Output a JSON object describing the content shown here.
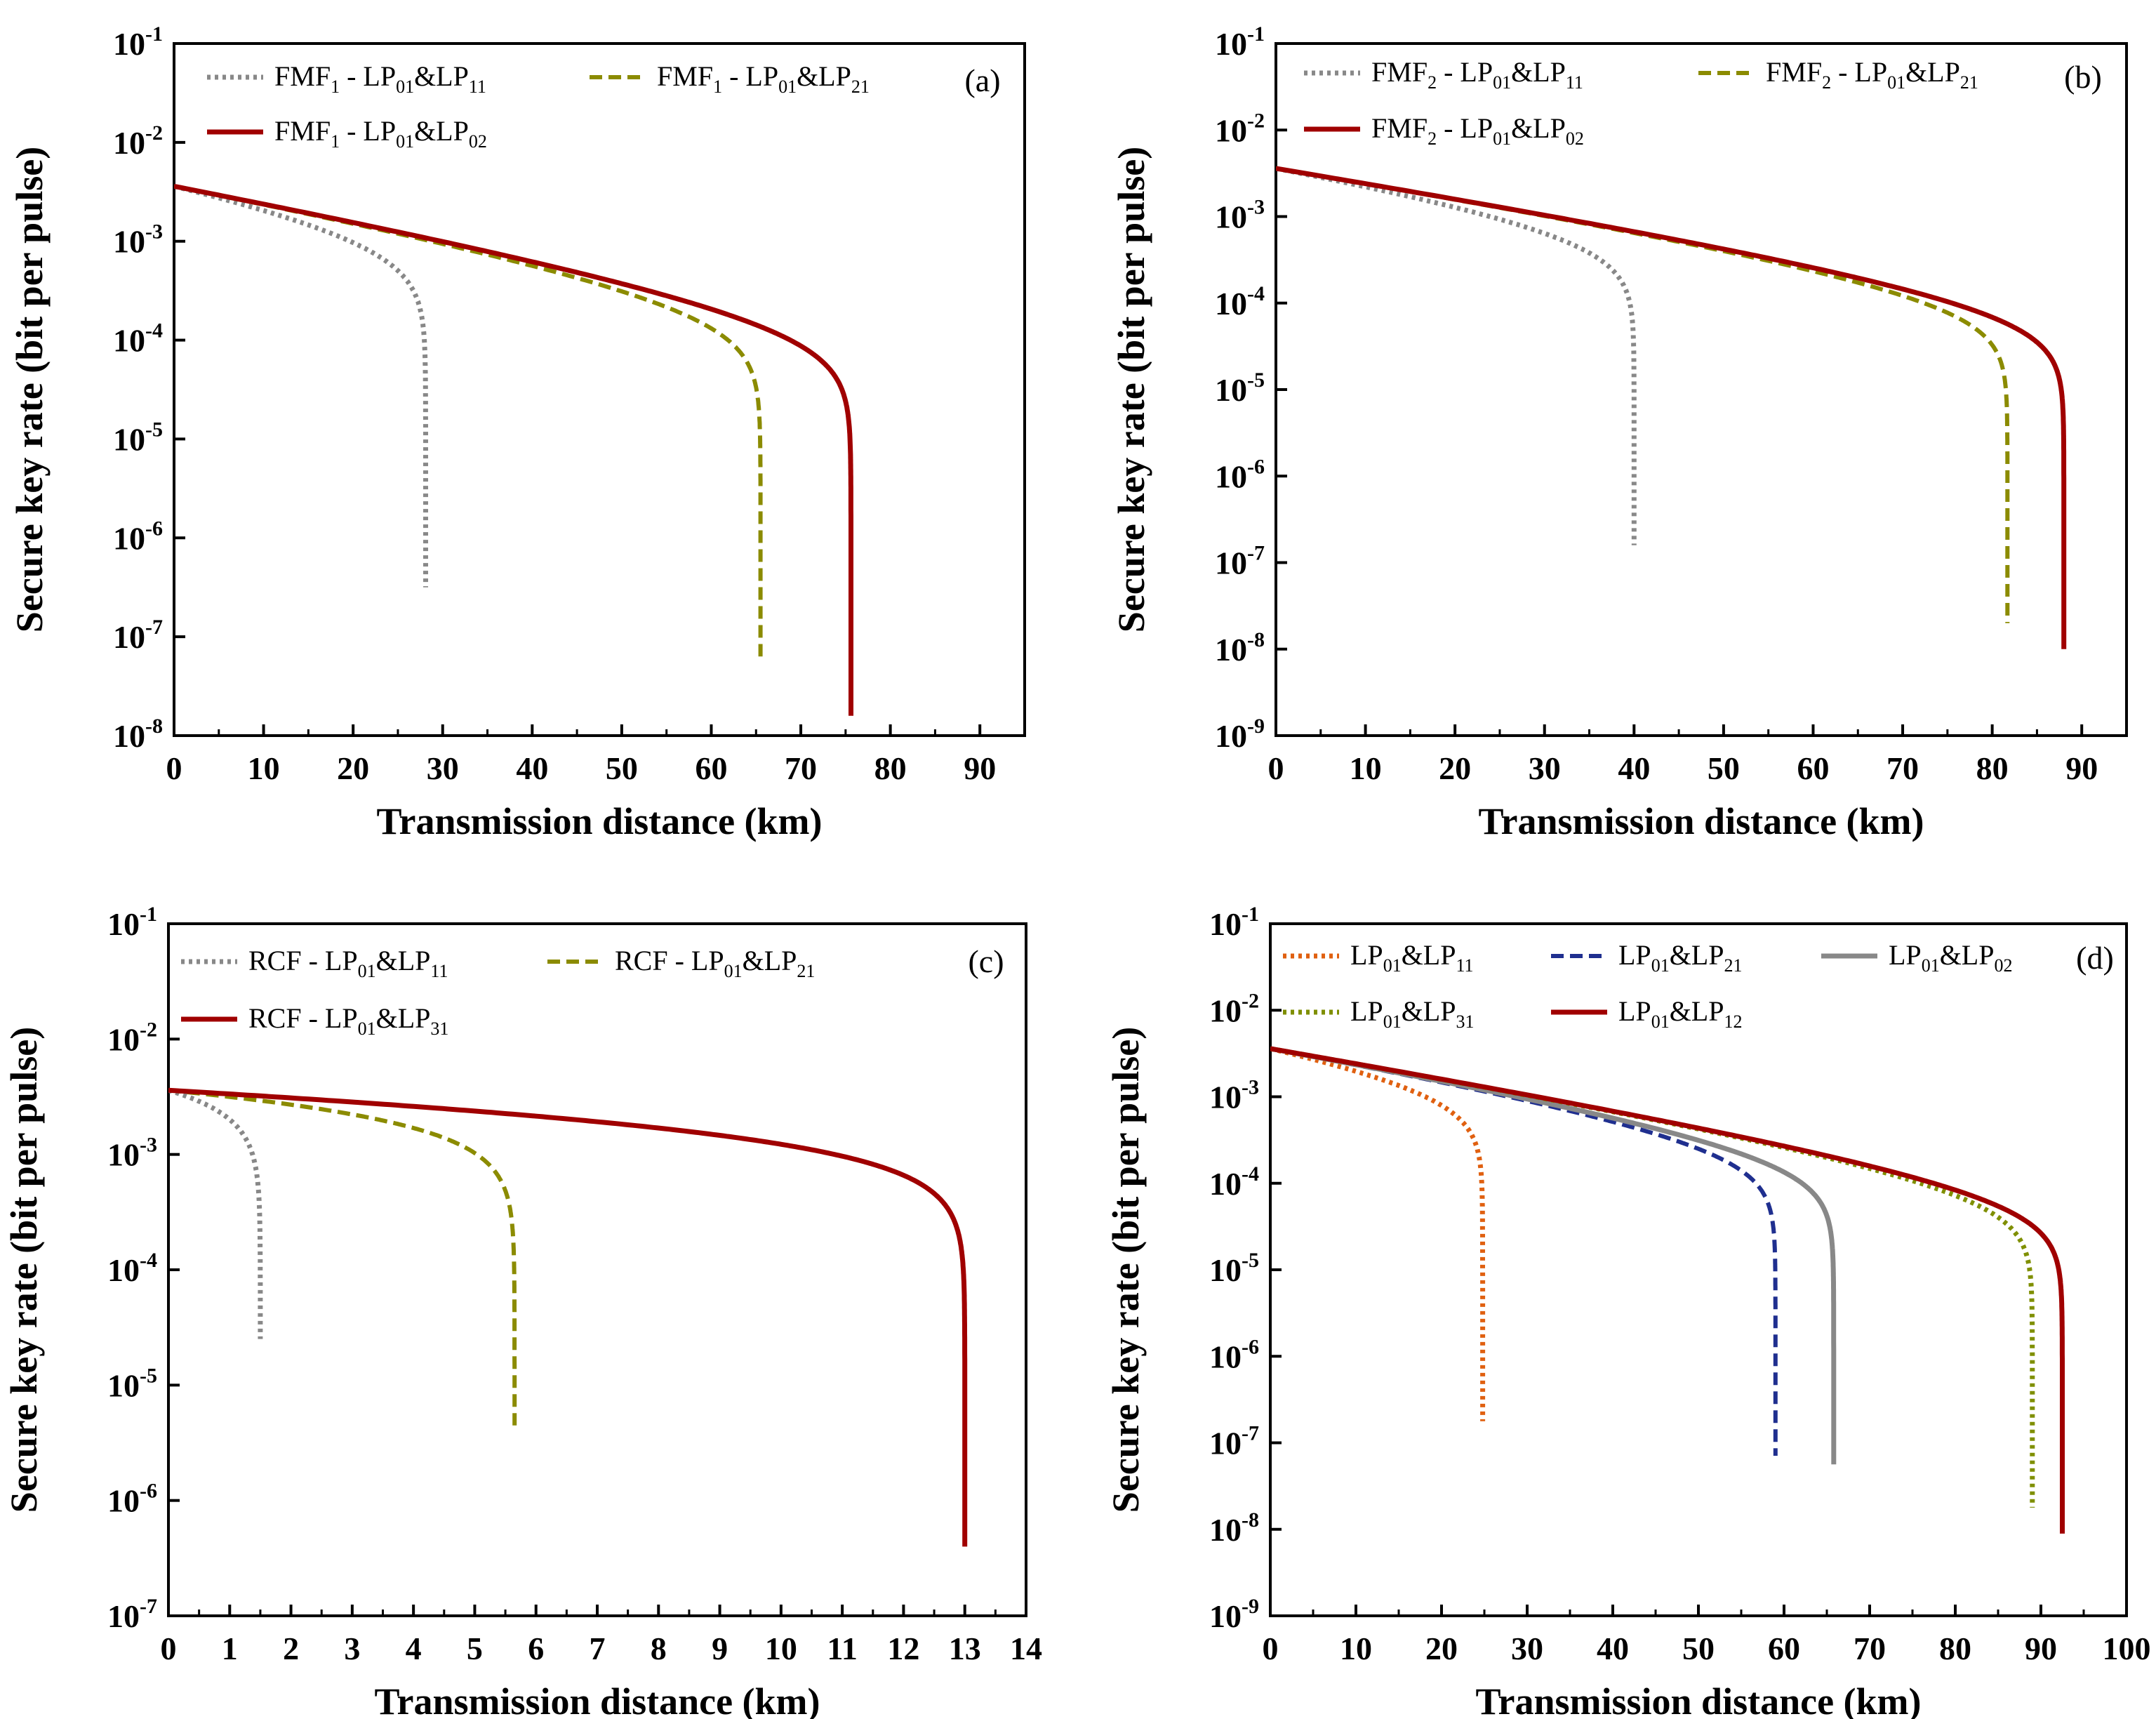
{
  "figure": {
    "colors": {
      "gray": "#888888",
      "olive": "#8B8B00",
      "darkred": "#A00000",
      "orange": "#E06010",
      "navy": "#1F2F8F",
      "olive_dotted": "#7F8F00"
    },
    "tick_base": "10",
    "tick_exp_sign": "-"
  },
  "chart_data": [
    {
      "panel": "(a)",
      "type": "line",
      "xlabel": "Transmission distance (km)",
      "ylabel": "Secure key rate (bit per pulse)",
      "xlim": [
        0,
        95
      ],
      "xticks": [
        0,
        10,
        20,
        30,
        40,
        50,
        60,
        70,
        80,
        90
      ],
      "ylim_log10": [
        -8,
        -1
      ],
      "yticks_exp": [
        -8,
        -7,
        -6,
        -5,
        -4,
        -3,
        -2,
        -1
      ],
      "y0": 0.0036,
      "series": [
        {
          "name": "FMF1 - LP01&LP11",
          "legend": {
            "pre": "FMF",
            "s1": "1",
            "mid": " - LP",
            "s2": "01",
            "amp": "&LP",
            "s3": "11"
          },
          "color": "#888888",
          "style": "dotted",
          "cutoff_km": 28.1,
          "end_log10": -6.5
        },
        {
          "name": "FMF1 - LP01&LP21",
          "legend": {
            "pre": "FMF",
            "s1": "1",
            "mid": " - LP",
            "s2": "01",
            "amp": "&LP",
            "s3": "21"
          },
          "color": "#8B8B00",
          "style": "dashed",
          "cutoff_km": 65.5,
          "end_log10": -7.2
        },
        {
          "name": "FMF1 - LP01&LP02",
          "legend": {
            "pre": "FMF",
            "s1": "1",
            "mid": " - LP",
            "s2": "01",
            "amp": "&LP",
            "s3": "02"
          },
          "color": "#A00000",
          "style": "solid",
          "cutoff_km": 75.6,
          "end_log10": -7.8
        }
      ]
    },
    {
      "panel": "(b)",
      "type": "line",
      "xlabel": "Transmission distance (km)",
      "ylabel": "Secure key rate (bit per pulse)",
      "xlim": [
        0,
        95
      ],
      "xticks": [
        0,
        10,
        20,
        30,
        40,
        50,
        60,
        70,
        80,
        90
      ],
      "ylim_log10": [
        -9,
        -1
      ],
      "yticks_exp": [
        -9,
        -8,
        -7,
        -6,
        -5,
        -4,
        -3,
        -2,
        -1
      ],
      "y0": 0.0036,
      "series": [
        {
          "name": "FMF2 - LP01&LP11",
          "legend": {
            "pre": "FMF",
            "s1": "2",
            "mid": " - LP",
            "s2": "01",
            "amp": "&LP",
            "s3": "11"
          },
          "color": "#888888",
          "style": "dotted",
          "cutoff_km": 40.0,
          "end_log10": -6.8
        },
        {
          "name": "FMF2 - LP01&LP21",
          "legend": {
            "pre": "FMF",
            "s1": "2",
            "mid": " - LP",
            "s2": "01",
            "amp": "&LP",
            "s3": "21"
          },
          "color": "#8B8B00",
          "style": "dashed",
          "cutoff_km": 81.7,
          "end_log10": -7.7
        },
        {
          "name": "FMF2 - LP01&LP02",
          "legend": {
            "pre": "FMF",
            "s1": "2",
            "mid": " - LP",
            "s2": "01",
            "amp": "&LP",
            "s3": "02"
          },
          "color": "#A00000",
          "style": "solid",
          "cutoff_km": 88.0,
          "end_log10": -8.0
        }
      ]
    },
    {
      "panel": "(c)",
      "type": "line",
      "xlabel": "Transmission distance (km)",
      "ylabel": "Secure key rate (bit per pulse)",
      "xlim": [
        0,
        14
      ],
      "xticks": [
        0,
        1,
        2,
        3,
        4,
        5,
        6,
        7,
        8,
        9,
        10,
        11,
        12,
        13,
        14
      ],
      "ylim_log10": [
        -7,
        -1
      ],
      "yticks_exp": [
        -7,
        -6,
        -5,
        -4,
        -3,
        -2,
        -1
      ],
      "y0": 0.0036,
      "series": [
        {
          "name": "RCF - LP01&LP11",
          "legend": {
            "pre": "RCF",
            "s1": "",
            "mid": " - LP",
            "s2": "01",
            "amp": "&LP",
            "s3": "11"
          },
          "color": "#888888",
          "style": "dotted",
          "cutoff_km": 1.5,
          "end_log10": -4.6
        },
        {
          "name": "RCF - LP01&LP21",
          "legend": {
            "pre": "RCF",
            "s1": "",
            "mid": " - LP",
            "s2": "01",
            "amp": "&LP",
            "s3": "21"
          },
          "color": "#8B8B00",
          "style": "dashed",
          "cutoff_km": 5.65,
          "end_log10": -5.35
        },
        {
          "name": "RCF - LP01&LP31",
          "legend": {
            "pre": "RCF",
            "s1": "",
            "mid": " - LP",
            "s2": "01",
            "amp": "&LP",
            "s3": "31"
          },
          "color": "#A00000",
          "style": "solid",
          "cutoff_km": 13.0,
          "end_log10": -6.4
        }
      ]
    },
    {
      "panel": "(d)",
      "type": "line",
      "xlabel": "Transmission distance (km)",
      "ylabel": "Secure key rate (bit per pulse)",
      "xlim": [
        0,
        100
      ],
      "xticks": [
        0,
        10,
        20,
        30,
        40,
        50,
        60,
        70,
        80,
        90,
        100
      ],
      "ylim_log10": [
        -9,
        -1
      ],
      "yticks_exp": [
        -9,
        -8,
        -7,
        -6,
        -5,
        -4,
        -3,
        -2,
        -1
      ],
      "y0": 0.0036,
      "series": [
        {
          "name": "LP01&LP11",
          "legend": {
            "pre": "",
            "s1": "",
            "mid": "LP",
            "s2": "01",
            "amp": "&LP",
            "s3": "11"
          },
          "color": "#E06010",
          "style": "dotted",
          "cutoff_km": 24.8,
          "end_log10": -6.75
        },
        {
          "name": "LP01&LP21",
          "legend": {
            "pre": "",
            "s1": "",
            "mid": "LP",
            "s2": "01",
            "amp": "&LP",
            "s3": "21"
          },
          "color": "#1F2F8F",
          "style": "dashed",
          "cutoff_km": 59.0,
          "end_log10": -7.15
        },
        {
          "name": "LP01&LP02",
          "legend": {
            "pre": "",
            "s1": "",
            "mid": "LP",
            "s2": "01",
            "amp": "&LP",
            "s3": "02"
          },
          "color": "#888888",
          "style": "solid",
          "cutoff_km": 65.8,
          "end_log10": -7.25
        },
        {
          "name": "LP01&LP31",
          "legend": {
            "pre": "",
            "s1": "",
            "mid": "LP",
            "s2": "01",
            "amp": "&LP",
            "s3": "31"
          },
          "color": "#7F8F00",
          "style": "dotted",
          "cutoff_km": 89.0,
          "end_log10": -7.75
        },
        {
          "name": "LP01&LP12",
          "legend": {
            "pre": "",
            "s1": "",
            "mid": "LP",
            "s2": "01",
            "amp": "&LP",
            "s3": "12"
          },
          "color": "#A00000",
          "style": "solid",
          "cutoff_km": 92.5,
          "end_log10": -8.05
        }
      ]
    }
  ]
}
